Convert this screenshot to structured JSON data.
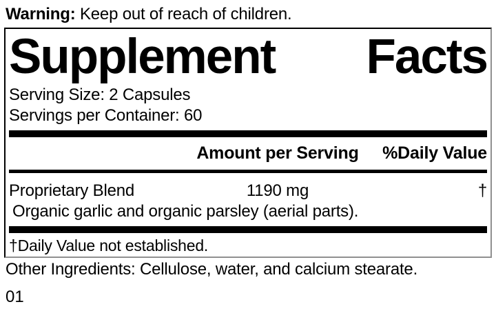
{
  "colors": {
    "text": "#000000",
    "background": "#ffffff",
    "divider": "#000000"
  },
  "warning": {
    "label": "Warning:",
    "text": "Keep out of reach of children."
  },
  "panel": {
    "title": "Supplement Facts",
    "title_words": [
      "Supplement",
      "Facts"
    ],
    "serving_size": "Serving Size: 2 Capsules",
    "servings_per_container": "Servings per Container: 60",
    "columns": {
      "amount_header": "Amount per Serving",
      "daily_value_header": "%Daily Value"
    },
    "rows": [
      {
        "name": "Proprietary Blend",
        "amount": "1190 mg",
        "daily_value": "†",
        "description": "Organic garlic and organic parsley (aerial parts)."
      }
    ],
    "footnote": "†Daily Value not established."
  },
  "other_ingredients": "Other Ingredients: Cellulose, water, and calcium stearate.",
  "footer_code": "01"
}
